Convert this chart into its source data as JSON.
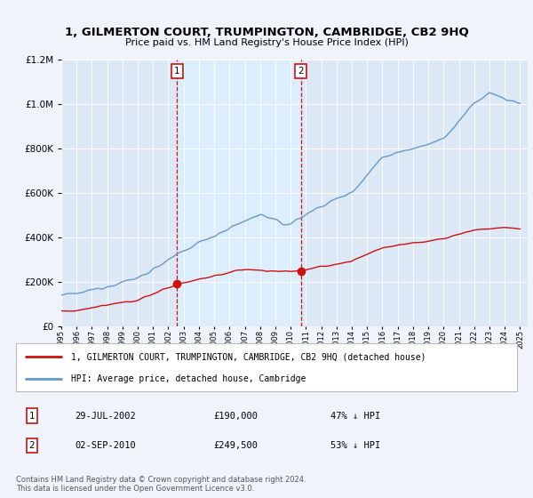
{
  "title": "1, GILMERTON COURT, TRUMPINGTON, CAMBRIDGE, CB2 9HQ",
  "subtitle": "Price paid vs. HM Land Registry's House Price Index (HPI)",
  "background_color": "#f0f4fa",
  "plot_bg_color": "#dce8f5",
  "legend_entry1": "1, GILMERTON COURT, TRUMPINGTON, CAMBRIDGE, CB2 9HQ (detached house)",
  "legend_entry2": "HPI: Average price, detached house, Cambridge",
  "transaction1_date": "29-JUL-2002",
  "transaction1_price": 190000,
  "transaction1_label": "47% ↓ HPI",
  "transaction2_date": "02-SEP-2010",
  "transaction2_price": 249500,
  "transaction2_label": "53% ↓ HPI",
  "footer": "Contains HM Land Registry data © Crown copyright and database right 2024.\nThis data is licensed under the Open Government Licence v3.0.",
  "hpi_color": "#6699cc",
  "price_color": "#cc1111",
  "vline_color": "#cc1111",
  "marker_color": "#cc1111",
  "shaded_color": "#ddeeff",
  "ylim_max": 1200000,
  "ylim_min": 0,
  "start_year": 1995,
  "end_year": 2025,
  "t1": 2002.58,
  "t2": 2010.67,
  "p1": 190000,
  "p2": 249500
}
